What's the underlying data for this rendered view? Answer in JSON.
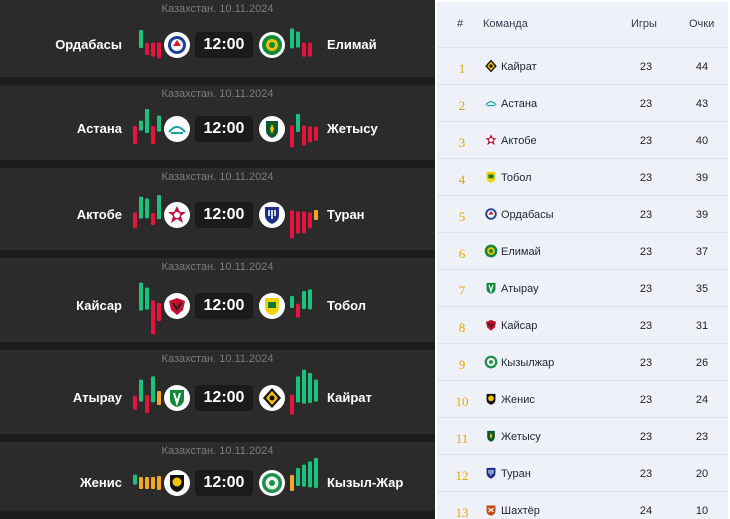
{
  "matches": [
    {
      "date": "Казахстан. 10.11.2024",
      "home": "Ордабасы",
      "away": "Елимай",
      "time": "12:00",
      "home_form": [
        "w",
        "l",
        "l",
        "l"
      ],
      "away_form": [
        "w",
        "w",
        "l",
        "l"
      ],
      "home_logo": "ordabasy-logo",
      "away_logo": "elimai-logo"
    },
    {
      "date": "Казахстан. 10.11.2024",
      "home": "Астана",
      "away": "Жетысу",
      "time": "12:00",
      "home_form": [
        "l",
        "w",
        "w",
        "l",
        "w"
      ],
      "away_form": [
        "l",
        "w",
        "l",
        "l",
        "l"
      ],
      "home_logo": "astana-logo",
      "away_logo": "zhetysu-logo"
    },
    {
      "date": "Казахстан. 10.11.2024",
      "home": "Актобе",
      "away": "Туран",
      "time": "12:00",
      "home_form": [
        "l",
        "w",
        "w",
        "l",
        "w"
      ],
      "away_form": [
        "l",
        "l",
        "l",
        "l",
        "d"
      ],
      "home_logo": "aktobe-logo",
      "away_logo": "turan-logo"
    },
    {
      "date": "Казахстан. 10.11.2024",
      "home": "Кайсар",
      "away": "Тобол",
      "time": "12:00",
      "home_form": [
        "w",
        "w",
        "l",
        "l"
      ],
      "away_form": [
        "w",
        "l",
        "w",
        "w"
      ],
      "home_logo": "kaisar-logo",
      "away_logo": "tobol-logo"
    },
    {
      "date": "Казахстан. 10.11.2024",
      "home": "Атырау",
      "away": "Кайрат",
      "time": "12:00",
      "home_form": [
        "l",
        "w",
        "l",
        "w",
        "d"
      ],
      "away_form": [
        "l",
        "w",
        "w",
        "w",
        "w"
      ],
      "home_logo": "atyrau-logo",
      "away_logo": "kairat-logo"
    },
    {
      "date": "Казахстан. 10.11.2024",
      "home": "Женис",
      "away": "Кызыл-Жар",
      "time": "12:00",
      "home_form": [
        "w",
        "d",
        "d",
        "d",
        "d"
      ],
      "away_form": [
        "d",
        "w",
        "w",
        "w",
        "w"
      ],
      "home_logo": "zhenis-logo",
      "away_logo": "kyzylzhar-logo"
    }
  ],
  "standings": {
    "headers": {
      "pos": "#",
      "team": "Команда",
      "games": "Игры",
      "points": "Очки"
    },
    "rows": [
      {
        "pos": "1",
        "team": "Кайрат",
        "games": "23",
        "points": "44",
        "logo": "kairat-logo"
      },
      {
        "pos": "2",
        "team": "Астана",
        "games": "23",
        "points": "43",
        "logo": "astana-logo"
      },
      {
        "pos": "3",
        "team": "Актобе",
        "games": "23",
        "points": "40",
        "logo": "aktobe-logo"
      },
      {
        "pos": "4",
        "team": "Тобол",
        "games": "23",
        "points": "39",
        "logo": "tobol-logo"
      },
      {
        "pos": "5",
        "team": "Ордабасы",
        "games": "23",
        "points": "39",
        "logo": "ordabasy-logo"
      },
      {
        "pos": "6",
        "team": "Елимай",
        "games": "23",
        "points": "37",
        "logo": "elimai-logo"
      },
      {
        "pos": "7",
        "team": "Атырау",
        "games": "23",
        "points": "35",
        "logo": "atyrau-logo"
      },
      {
        "pos": "8",
        "team": "Кайсар",
        "games": "23",
        "points": "31",
        "logo": "kaisar-logo"
      },
      {
        "pos": "9",
        "team": "Кызылжар",
        "games": "23",
        "points": "26",
        "logo": "kyzylzhar-logo"
      },
      {
        "pos": "10",
        "team": "Женис",
        "games": "23",
        "points": "24",
        "logo": "zhenis-logo"
      },
      {
        "pos": "11",
        "team": "Жетысу",
        "games": "23",
        "points": "23",
        "logo": "zhetysu-logo"
      },
      {
        "pos": "12",
        "team": "Туран",
        "games": "23",
        "points": "20",
        "logo": "turan-logo"
      },
      {
        "pos": "13",
        "team": "Шахтёр",
        "games": "24",
        "points": "10",
        "logo": "shakhter-logo"
      }
    ]
  },
  "colors": {
    "win": "#19c37d",
    "loss": "#e8123f",
    "draw": "#f5a623",
    "position": "#e9a400"
  }
}
